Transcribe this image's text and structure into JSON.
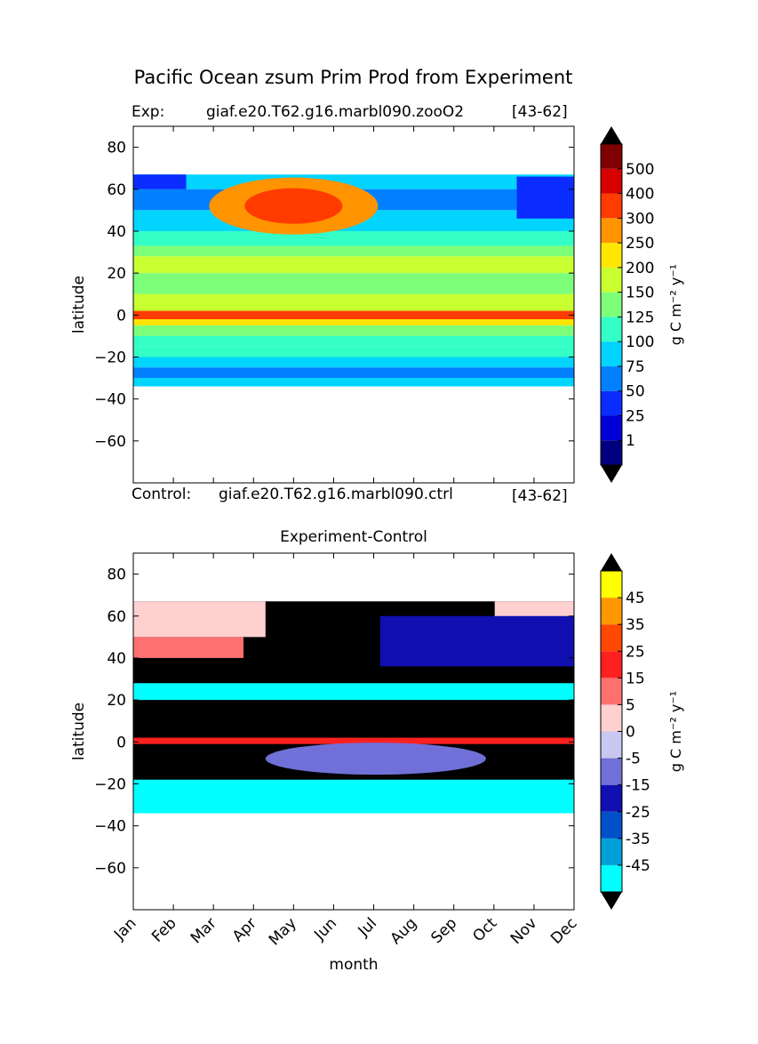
{
  "title": "Pacific Ocean zsum Prim Prod from Experiment",
  "experiment": {
    "label": "Exp:",
    "name": "giaf.e20.T62.g16.marbl090.zooO2",
    "years": "[43-62]"
  },
  "control": {
    "label": "Control:",
    "name": "giaf.e20.T62.g16.marbl090.ctrl",
    "years": "[43-62]"
  },
  "diff_title": "Experiment-Control",
  "colorbar_unit": "g C m⁻² y⁻¹",
  "chart_data": [
    {
      "type": "heatmap",
      "panel": "experiment",
      "xlabel": "",
      "ylabel": "latitude",
      "x_categories": [
        "Jan",
        "Feb",
        "Mar",
        "Apr",
        "May",
        "Jun",
        "Jul",
        "Aug",
        "Sep",
        "Oct",
        "Nov",
        "Dec"
      ],
      "ylim": [
        -80,
        90
      ],
      "yticks": [
        80,
        60,
        40,
        20,
        0,
        -20,
        -40,
        -60
      ],
      "data_lat_range": [
        -34,
        67
      ],
      "colorbar": {
        "label": "g C m⁻² y⁻¹",
        "levels": [
          1,
          25,
          50,
          75,
          100,
          125,
          150,
          200,
          250,
          300,
          400,
          500
        ],
        "colors": [
          "#00007f",
          "#0000d6",
          "#0a2cff",
          "#0080ff",
          "#00d4ff",
          "#34ffc6",
          "#7dff7a",
          "#c7ff30",
          "#ffe600",
          "#ff9400",
          "#ff3b00",
          "#d60000",
          "#7f0000"
        ],
        "extend": "both"
      },
      "profile_colors": [
        "#00d4ff",
        "#0080ff",
        "#00d4ff",
        "#34ffc6",
        "#7dff7a",
        "#c7ff30",
        "#7dff7a",
        "#c7ff30",
        "#ff3b00",
        "#ffe600",
        "#7dff7a",
        "#34ffc6",
        "#34ffc6",
        "#00d4ff",
        "#0080ff",
        "#00d4ff",
        "#ffe600"
      ],
      "profile_lats": [
        67,
        60,
        50,
        40,
        33,
        28,
        20,
        10,
        2,
        -2,
        -5,
        -10,
        -15,
        -20,
        -25,
        -30,
        -34
      ],
      "seasonal_hotspot": {
        "lat": 52,
        "month": "May",
        "value_range": [
          300,
          400
        ]
      }
    },
    {
      "type": "heatmap",
      "panel": "difference",
      "title": "Experiment-Control",
      "xlabel": "month",
      "ylabel": "latitude",
      "x_categories": [
        "Jan",
        "Feb",
        "Mar",
        "Apr",
        "May",
        "Jun",
        "Jul",
        "Aug",
        "Sep",
        "Oct",
        "Nov",
        "Dec"
      ],
      "ylim": [
        -80,
        90
      ],
      "yticks": [
        80,
        60,
        40,
        20,
        0,
        -20,
        -40,
        -60
      ],
      "data_lat_range": [
        -34,
        67
      ],
      "colorbar": {
        "label": "g C m⁻² y⁻¹",
        "levels": [
          -45,
          -35,
          -25,
          -15,
          -5,
          0,
          5,
          15,
          25,
          35,
          45
        ],
        "colors": [
          "#00ffff",
          "#00a0d8",
          "#0050c8",
          "#1010b0",
          "#7070d8",
          "#c8c8f0",
          "#ffd0d0",
          "#ff7070",
          "#ff2020",
          "#ff4800",
          "#ff9800",
          "#ffff00"
        ],
        "extend": "both"
      },
      "background_color": "#000000"
    }
  ]
}
